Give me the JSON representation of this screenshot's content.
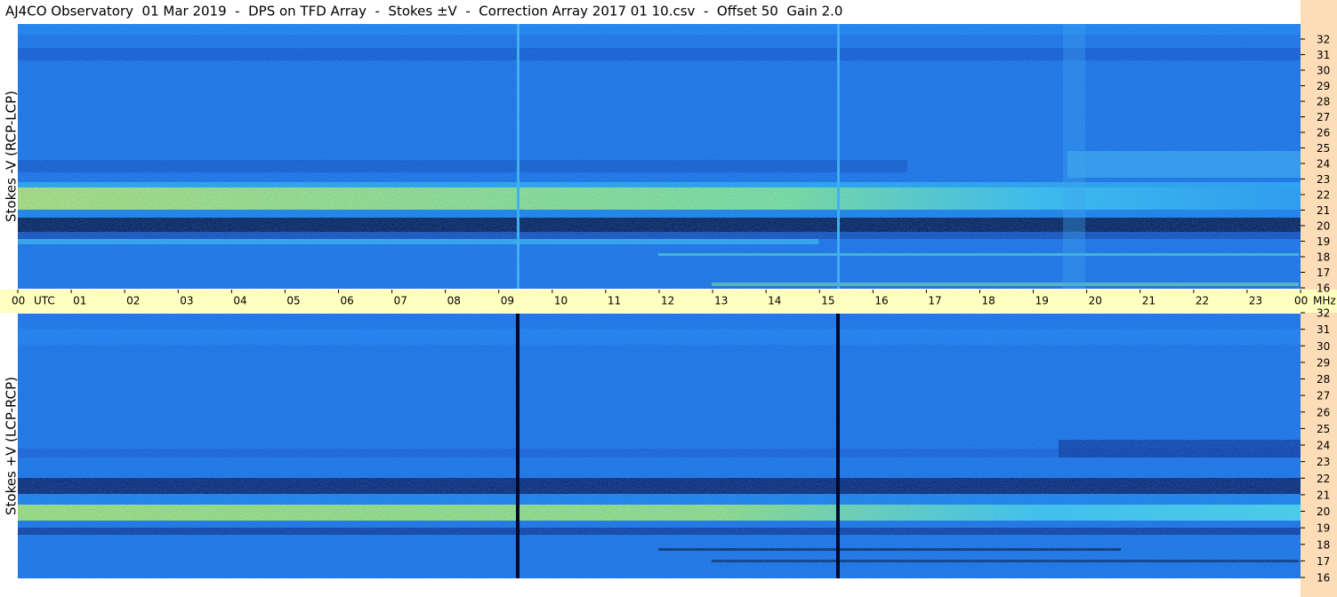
{
  "chart_data": {
    "type": "heatmap",
    "title": "AJ4CO Observatory  01 Mar 2019  -  DPS on TFD Array  -  Stokes ±V  -  Correction Array 2017 01 10.csv  -  Offset 50  Gain 2.0",
    "x_unit": "UTC",
    "y_unit": "MHz",
    "panels": [
      {
        "ylabel": "Stokes -V (RCP-LCP)"
      },
      {
        "ylabel": "Stokes +V (LCP-RCP)"
      }
    ],
    "xlim": [
      0,
      24
    ],
    "xticks": [
      {
        "value": 0,
        "label": "00"
      },
      {
        "value": 1,
        "label": "01"
      },
      {
        "value": 2,
        "label": "02"
      },
      {
        "value": 3,
        "label": "03"
      },
      {
        "value": 4,
        "label": "04"
      },
      {
        "value": 5,
        "label": "05"
      },
      {
        "value": 6,
        "label": "06"
      },
      {
        "value": 7,
        "label": "07"
      },
      {
        "value": 8,
        "label": "08"
      },
      {
        "value": 9,
        "label": "09"
      },
      10,
      11,
      12,
      13,
      14,
      15,
      16,
      17,
      18,
      19,
      20,
      21,
      22,
      23,
      {
        "value": 24,
        "label": "00"
      }
    ],
    "ylim": [
      16,
      32
    ],
    "yticks": [
      16,
      17,
      18,
      19,
      20,
      21,
      22,
      23,
      24,
      25,
      26,
      27,
      28,
      29,
      30,
      31,
      32
    ]
  }
}
